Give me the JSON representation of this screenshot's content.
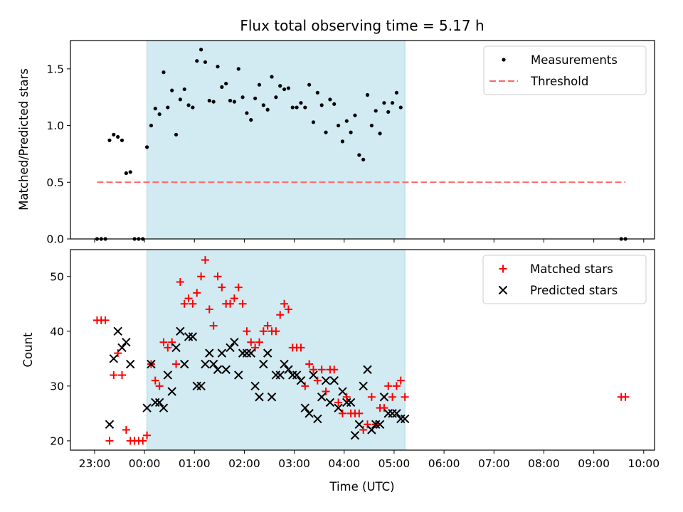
{
  "colors": {
    "shade": "#add8e6",
    "measurement": "#000000",
    "threshold": "#ff6666",
    "matched": "#ff0000",
    "predicted": "#000000"
  },
  "chart_data": [
    {
      "type": "scatter",
      "title": "Flux total observing time = 5.17 h",
      "xlabel": "",
      "ylabel": "Matched/Predicted stars",
      "xlim": [
        "22:31",
        "10:13"
      ],
      "ylim": [
        0,
        1.75
      ],
      "yticks": [
        0.0,
        0.5,
        1.0,
        1.5
      ],
      "ytick_labels": [
        "0.0",
        "0.5",
        "1.0",
        "1.5"
      ],
      "shaded_region": [
        "00:03",
        "05:13"
      ],
      "legend": {
        "placement": "top-right",
        "entries": [
          "Measurements",
          "Threshold"
        ]
      },
      "threshold": {
        "name": "Threshold",
        "y": 0.5,
        "x_range": [
          "23:03",
          "09:38"
        ]
      },
      "series": [
        {
          "name": "Measurements",
          "marker": "dot",
          "points": [
            [
              "23:03",
              0
            ],
            [
              "23:08",
              0
            ],
            [
              "23:13",
              0
            ],
            [
              "23:18",
              0.87
            ],
            [
              "23:23",
              0.92
            ],
            [
              "23:28",
              0.9
            ],
            [
              "23:33",
              0.87
            ],
            [
              "23:38",
              0.58
            ],
            [
              "23:43",
              0.59
            ],
            [
              "23:48",
              0
            ],
            [
              "23:53",
              0
            ],
            [
              "23:58",
              0
            ],
            [
              "00:03",
              0.81
            ],
            [
              "00:08",
              1.0
            ],
            [
              "00:13",
              1.15
            ],
            [
              "00:18",
              1.1
            ],
            [
              "00:23",
              1.47
            ],
            [
              "00:28",
              1.16
            ],
            [
              "00:33",
              1.31
            ],
            [
              "00:38",
              0.92
            ],
            [
              "00:43",
              1.23
            ],
            [
              "00:48",
              1.32
            ],
            [
              "00:53",
              1.18
            ],
            [
              "00:58",
              1.16
            ],
            [
              "01:03",
              1.57
            ],
            [
              "01:08",
              1.67
            ],
            [
              "01:13",
              1.56
            ],
            [
              "01:18",
              1.22
            ],
            [
              "01:23",
              1.21
            ],
            [
              "01:28",
              1.52
            ],
            [
              "01:33",
              1.34
            ],
            [
              "01:38",
              1.37
            ],
            [
              "01:43",
              1.22
            ],
            [
              "01:48",
              1.21
            ],
            [
              "01:53",
              1.5
            ],
            [
              "01:58",
              1.25
            ],
            [
              "02:03",
              1.11
            ],
            [
              "02:08",
              1.05
            ],
            [
              "02:13",
              1.24
            ],
            [
              "02:18",
              1.36
            ],
            [
              "02:23",
              1.18
            ],
            [
              "02:28",
              1.14
            ],
            [
              "02:33",
              1.43
            ],
            [
              "02:38",
              1.25
            ],
            [
              "02:43",
              1.35
            ],
            [
              "02:48",
              1.32
            ],
            [
              "02:53",
              1.33
            ],
            [
              "02:58",
              1.16
            ],
            [
              "03:03",
              1.16
            ],
            [
              "03:08",
              1.2
            ],
            [
              "03:13",
              1.16
            ],
            [
              "03:18",
              1.36
            ],
            [
              "03:23",
              1.03
            ],
            [
              "03:28",
              1.29
            ],
            [
              "03:33",
              1.18
            ],
            [
              "03:38",
              0.94
            ],
            [
              "03:43",
              1.23
            ],
            [
              "03:48",
              1.19
            ],
            [
              "03:53",
              1.0
            ],
            [
              "03:58",
              0.86
            ],
            [
              "04:03",
              1.04
            ],
            [
              "04:08",
              0.94
            ],
            [
              "04:13",
              1.09
            ],
            [
              "04:18",
              0.74
            ],
            [
              "04:23",
              0.7
            ],
            [
              "04:28",
              1.27
            ],
            [
              "04:33",
              1.0
            ],
            [
              "04:38",
              1.13
            ],
            [
              "04:43",
              0.93
            ],
            [
              "04:48",
              1.2
            ],
            [
              "04:53",
              1.12
            ],
            [
              "04:58",
              1.2
            ],
            [
              "05:03",
              1.29
            ],
            [
              "05:08",
              1.16
            ],
            [
              "09:33",
              0
            ],
            [
              "09:38",
              0
            ]
          ]
        }
      ]
    },
    {
      "type": "scatter",
      "title": "",
      "xlabel": "Time (UTC)",
      "ylabel": "Count",
      "xlim": [
        "22:31",
        "10:13"
      ],
      "ylim": [
        18.3,
        54.9
      ],
      "yticks": [
        20,
        30,
        40,
        50
      ],
      "ytick_labels": [
        "20",
        "30",
        "40",
        "50"
      ],
      "xticks": [
        "23:00",
        "00:00",
        "01:00",
        "02:00",
        "03:00",
        "04:00",
        "05:00",
        "06:00",
        "07:00",
        "08:00",
        "09:00",
        "10:00"
      ],
      "xtick_labels": [
        "23:00",
        "00:00",
        "01:00",
        "02:00",
        "03:00",
        "04:00",
        "05:00",
        "06:00",
        "07:00",
        "08:00",
        "09:00",
        "10:00"
      ],
      "shaded_region": [
        "00:03",
        "05:13"
      ],
      "legend": {
        "placement": "top-right",
        "entries": [
          "Matched stars",
          "Predicted stars"
        ]
      },
      "series": [
        {
          "name": "Matched stars",
          "marker": "plus",
          "points": [
            [
              "23:03",
              42
            ],
            [
              "23:08",
              42
            ],
            [
              "23:13",
              42
            ],
            [
              "23:18",
              20
            ],
            [
              "23:23",
              32
            ],
            [
              "23:28",
              36
            ],
            [
              "23:33",
              32
            ],
            [
              "23:38",
              22
            ],
            [
              "23:43",
              20
            ],
            [
              "23:48",
              20
            ],
            [
              "23:53",
              20
            ],
            [
              "23:58",
              20
            ],
            [
              "00:03",
              21
            ],
            [
              "00:08",
              34
            ],
            [
              "00:13",
              31
            ],
            [
              "00:18",
              30
            ],
            [
              "00:23",
              38
            ],
            [
              "00:28",
              37
            ],
            [
              "00:33",
              38
            ],
            [
              "00:38",
              34
            ],
            [
              "00:43",
              49
            ],
            [
              "00:48",
              45
            ],
            [
              "00:53",
              46
            ],
            [
              "00:58",
              45
            ],
            [
              "01:03",
              47
            ],
            [
              "01:08",
              50
            ],
            [
              "01:13",
              53
            ],
            [
              "01:18",
              44
            ],
            [
              "01:23",
              41
            ],
            [
              "01:28",
              50
            ],
            [
              "01:33",
              48
            ],
            [
              "01:38",
              45
            ],
            [
              "01:43",
              45
            ],
            [
              "01:48",
              46
            ],
            [
              "01:53",
              48
            ],
            [
              "01:58",
              45
            ],
            [
              "02:03",
              40
            ],
            [
              "02:08",
              38
            ],
            [
              "02:13",
              37
            ],
            [
              "02:18",
              38
            ],
            [
              "02:23",
              40
            ],
            [
              "02:28",
              41
            ],
            [
              "02:33",
              40
            ],
            [
              "02:38",
              40
            ],
            [
              "02:43",
              43
            ],
            [
              "02:48",
              45
            ],
            [
              "02:53",
              44
            ],
            [
              "02:58",
              37
            ],
            [
              "03:03",
              37
            ],
            [
              "03:08",
              37
            ],
            [
              "03:13",
              30
            ],
            [
              "03:18",
              34
            ],
            [
              "03:23",
              33
            ],
            [
              "03:28",
              31
            ],
            [
              "03:33",
              33
            ],
            [
              "03:38",
              29
            ],
            [
              "03:43",
              33
            ],
            [
              "03:48",
              33
            ],
            [
              "03:53",
              27
            ],
            [
              "03:58",
              25
            ],
            [
              "04:03",
              28
            ],
            [
              "04:08",
              25
            ],
            [
              "04:13",
              25
            ],
            [
              "04:18",
              25
            ],
            [
              "04:23",
              22
            ],
            [
              "04:28",
              23
            ],
            [
              "04:33",
              28
            ],
            [
              "04:38",
              23
            ],
            [
              "04:43",
              26
            ],
            [
              "04:48",
              26
            ],
            [
              "04:53",
              30
            ],
            [
              "04:58",
              28
            ],
            [
              "05:03",
              30
            ],
            [
              "05:08",
              31
            ],
            [
              "05:13",
              28
            ],
            [
              "09:33",
              28
            ],
            [
              "09:38",
              28
            ]
          ]
        },
        {
          "name": "Predicted stars",
          "marker": "x",
          "points": [
            [
              "23:18",
              23
            ],
            [
              "23:23",
              35
            ],
            [
              "23:28",
              40
            ],
            [
              "23:33",
              37
            ],
            [
              "23:38",
              38
            ],
            [
              "23:43",
              34
            ],
            [
              "00:03",
              26
            ],
            [
              "00:08",
              34
            ],
            [
              "00:13",
              27
            ],
            [
              "00:18",
              27
            ],
            [
              "00:23",
              26
            ],
            [
              "00:28",
              32
            ],
            [
              "00:33",
              29
            ],
            [
              "00:38",
              37
            ],
            [
              "00:43",
              40
            ],
            [
              "00:48",
              34
            ],
            [
              "00:53",
              39
            ],
            [
              "00:58",
              39
            ],
            [
              "01:03",
              30
            ],
            [
              "01:08",
              30
            ],
            [
              "01:13",
              34
            ],
            [
              "01:18",
              36
            ],
            [
              "01:23",
              34
            ],
            [
              "01:28",
              33
            ],
            [
              "01:33",
              36
            ],
            [
              "01:38",
              33
            ],
            [
              "01:43",
              37
            ],
            [
              "01:48",
              38
            ],
            [
              "01:53",
              32
            ],
            [
              "01:58",
              36
            ],
            [
              "02:03",
              36
            ],
            [
              "02:08",
              36
            ],
            [
              "02:13",
              30
            ],
            [
              "02:18",
              28
            ],
            [
              "02:23",
              34
            ],
            [
              "02:28",
              36
            ],
            [
              "02:33",
              28
            ],
            [
              "02:38",
              32
            ],
            [
              "02:43",
              32
            ],
            [
              "02:48",
              34
            ],
            [
              "02:53",
              33
            ],
            [
              "02:58",
              32
            ],
            [
              "03:03",
              32
            ],
            [
              "03:08",
              31
            ],
            [
              "03:13",
              26
            ],
            [
              "03:18",
              25
            ],
            [
              "03:23",
              32
            ],
            [
              "03:28",
              24
            ],
            [
              "03:33",
              28
            ],
            [
              "03:38",
              31
            ],
            [
              "03:43",
              27
            ],
            [
              "03:48",
              31
            ],
            [
              "03:53",
              26
            ],
            [
              "03:58",
              29
            ],
            [
              "04:03",
              27
            ],
            [
              "04:08",
              27
            ],
            [
              "04:13",
              21
            ],
            [
              "04:18",
              23
            ],
            [
              "04:23",
              30
            ],
            [
              "04:28",
              33
            ],
            [
              "04:33",
              22
            ],
            [
              "04:38",
              23
            ],
            [
              "04:43",
              23
            ],
            [
              "04:48",
              28
            ],
            [
              "04:53",
              25
            ],
            [
              "04:58",
              25
            ],
            [
              "05:03",
              25
            ],
            [
              "05:08",
              24
            ],
            [
              "05:13",
              24
            ]
          ]
        }
      ]
    }
  ]
}
